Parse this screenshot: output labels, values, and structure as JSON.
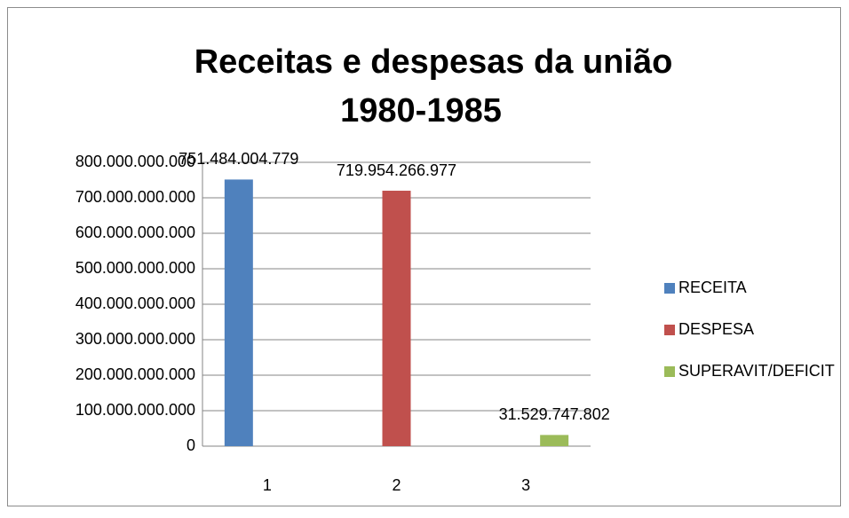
{
  "chart_data": {
    "type": "bar",
    "title": "Receitas e despesas da união",
    "subtitle": "1980-1985",
    "categories": [
      "1",
      "2",
      "3"
    ],
    "series": [
      {
        "name": "RECEITA",
        "color": "#4f81bd",
        "values": [
          751484004779,
          null,
          null
        ],
        "value_labels": [
          "751.484.004.779",
          null,
          null
        ]
      },
      {
        "name": "DESPESA",
        "color": "#c0504d",
        "values": [
          null,
          719954266977,
          null
        ],
        "value_labels": [
          null,
          "719.954.266.977",
          null
        ]
      },
      {
        "name": "SUPERAVIT/DEFICIT",
        "color": "#9bbb59",
        "values": [
          null,
          null,
          31529747802
        ],
        "value_labels": [
          null,
          null,
          "31.529.747.802"
        ]
      }
    ],
    "ylim": [
      0,
      800000000000
    ],
    "yticks": [
      0,
      {
        "value": 100000000000,
        "label": "100.000.000.000"
      },
      {
        "value": 200000000000,
        "label": "200.000.000.000"
      },
      {
        "value": 300000000000,
        "label": "300.000.000.000"
      },
      {
        "value": 400000000000,
        "label": "400.000.000.000"
      },
      {
        "value": 500000000000,
        "label": "500.000.000.000"
      },
      {
        "value": 600000000000,
        "label": "600.000.000.000"
      },
      {
        "value": 700000000000,
        "label": "700.000.000.000"
      },
      {
        "value": 800000000000,
        "label": "800.000.000.000"
      }
    ],
    "grid": true,
    "legend": "right"
  }
}
